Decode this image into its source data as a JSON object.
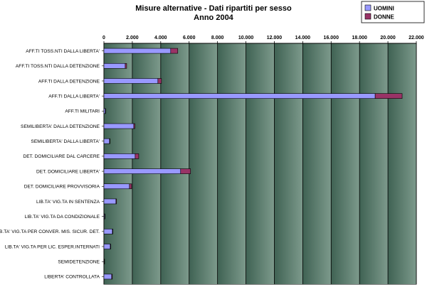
{
  "chart_data": {
    "type": "bar",
    "orientation": "horizontal",
    "stacked": true,
    "title": "Misure alternative - Dati ripartiti per sesso",
    "subtitle": "Anno  2004",
    "xlim": [
      0,
      22000
    ],
    "x_ticks": [
      "0",
      "2.000",
      "4.000",
      "6.000",
      "8.000",
      "10.000",
      "12.000",
      "14.000",
      "16.000",
      "18.000",
      "20.000",
      "22.000"
    ],
    "grid": true,
    "legend_position": "top-right",
    "categories": [
      "AFF.TI TOSS.NTI DALLA LIBERTA'",
      "AFF.TI TOSS.NTI DALLA DETENZIONE",
      "AFF.TI DALLA DETENZIONE",
      "AFF.TI DALLA LIBERTA'",
      "AFF.TI MILITARI",
      "SEMILIBERTA' DALLA DETENZIONE",
      "SEMILIBERTA' DALLA LIBERTA'",
      "DET. DOMICILIARE DAL CARCERE",
      "DET. DOMICILIARE LIBERTA'",
      "DET. DOMICILIARE PROVVISORIA",
      "LIB.TA'  VIG.TA IN SENTENZA",
      "LIB.TA' VIG.TA DA CONDIZIONALE",
      "LIB.TA' VIG.TA PER CONVER. MIS. SICUR. DET.",
      "LIB.TA' VIG.TA  PER LIC. ESPER.INTERNATI",
      "SEMIDETENZIONE",
      "LIBERTA' CONTROLLATA"
    ],
    "series": [
      {
        "name": "UOMINI",
        "color": "#9999ff",
        "values": [
          4700,
          1500,
          3800,
          19100,
          100,
          2100,
          400,
          2200,
          5400,
          1800,
          850,
          50,
          600,
          450,
          20,
          550
        ]
      },
      {
        "name": "DONNE",
        "color": "#993366",
        "values": [
          500,
          100,
          250,
          1900,
          10,
          80,
          30,
          250,
          700,
          150,
          40,
          5,
          30,
          20,
          2,
          40
        ]
      }
    ]
  }
}
